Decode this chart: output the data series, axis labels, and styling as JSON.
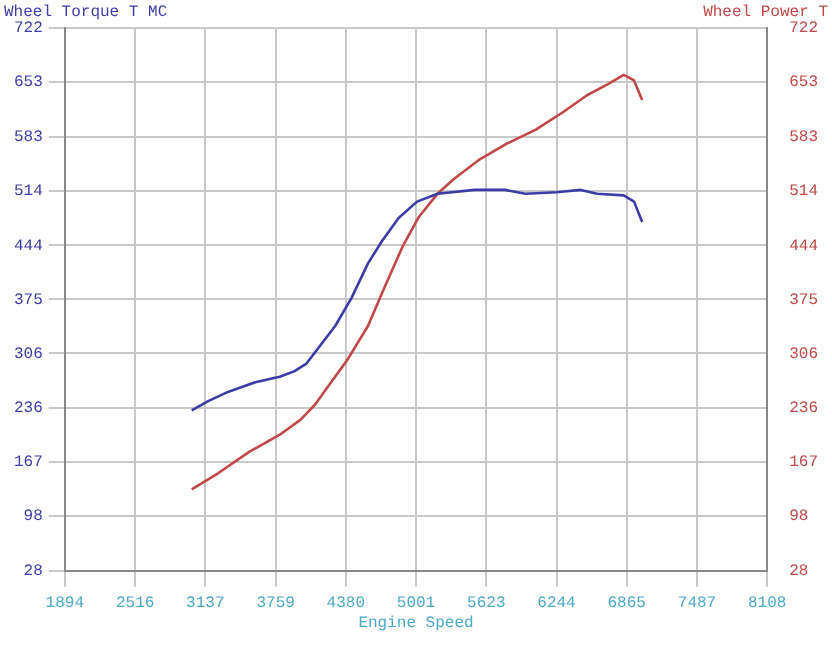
{
  "chart_data": {
    "type": "line",
    "xlabel": "Engine Speed",
    "ylabel": "Wheel Torque T MC",
    "y2label": "Wheel Power T",
    "xlim": [
      1894,
      8108
    ],
    "xticks": [
      1894,
      2516,
      3137,
      3759,
      4380,
      5001,
      5623,
      6244,
      6865,
      7487,
      8108
    ],
    "ylim": [
      28,
      722
    ],
    "yticks": [
      28,
      98,
      167,
      236,
      306,
      375,
      444,
      514,
      583,
      653,
      722
    ],
    "y2lim": [
      28,
      722
    ],
    "y2ticks": [
      28,
      98,
      167,
      236,
      306,
      375,
      444,
      514,
      583,
      653,
      722
    ],
    "grid": true,
    "legend": false,
    "marker": "none",
    "line_style": "solid",
    "series": [
      {
        "color": "#3c3ca8",
        "x": [
          3017,
          3162,
          3343,
          3579,
          3796,
          3923,
          4032,
          4159,
          4286,
          4431,
          4576,
          4702,
          4847,
          5010,
          5191,
          5517,
          5789,
          5970,
          6242,
          6459,
          6604,
          6839,
          6930,
          7002
        ],
        "values": [
          233,
          245,
          257,
          269,
          276,
          283,
          293,
          317,
          341,
          377,
          421,
          450,
          479,
          500,
          510,
          515,
          515,
          510,
          512,
          515,
          510,
          508,
          500,
          474
        ]
      },
      {
        "color": "#c04848",
        "axis": "y2",
        "x": [
          3017,
          3253,
          3525,
          3796,
          3978,
          4105,
          4250,
          4395,
          4576,
          4721,
          4884,
          5029,
          5191,
          5336,
          5554,
          5789,
          6061,
          6297,
          6514,
          6695,
          6839,
          6930,
          7002
        ],
        "values": [
          132,
          153,
          180,
          202,
          221,
          240,
          269,
          298,
          341,
          390,
          443,
          481,
          510,
          529,
          553,
          573,
          592,
          614,
          636,
          650,
          662,
          655,
          630
        ]
      }
    ]
  }
}
